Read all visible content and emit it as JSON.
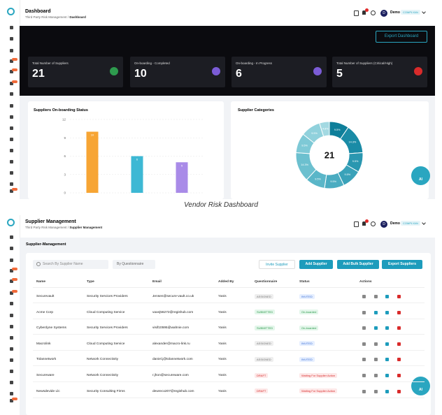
{
  "top": {
    "title": "Dashboard",
    "breadcrumb": [
      "Third Party Risk Management",
      "Dashboard"
    ],
    "separator": "/",
    "avatar": "D",
    "user": "Demo",
    "org": "COMPLYAN"
  },
  "export_button": "Export Dashboard",
  "stats": [
    {
      "label": "Total Number of Suppliers",
      "value": 21,
      "color": "#2e9b4e"
    },
    {
      "label": "On-boarding - Completed",
      "value": 10,
      "color": "#7b5cd6"
    },
    {
      "label": "On-boarding - In Progress",
      "value": 6,
      "color": "#7b5cd6"
    },
    {
      "label": "Total Number of Suppliers (Critical/High)",
      "value": 5,
      "color": "#d92b2b"
    }
  ],
  "ai_label": "AI",
  "caption": "Vendor Risk Dashboard",
  "chart_data": [
    {
      "type": "bar",
      "title": "Suppliers On-boarding Status",
      "categories": [
        null,
        null,
        null
      ],
      "values": [
        10,
        6,
        5
      ],
      "colors": [
        "#f7a534",
        "#3db8d4",
        "#a98be8"
      ],
      "ylim": [
        0,
        12
      ],
      "yticks": [
        0,
        3,
        6,
        9,
        12
      ],
      "grid": true
    },
    {
      "type": "pie",
      "title": "Supplier Categories",
      "total": 21,
      "values": [
        9.5,
        14.3,
        9.5,
        9.5,
        9.5,
        9.5,
        14.3,
        9.5,
        9.5,
        4.8
      ],
      "value_labels": [
        "9.5%",
        "14.3%",
        "9.5%",
        "9.5%",
        "9.5%",
        "9.5%",
        "14.3%",
        "9.5%",
        "9.5%",
        "4.8%"
      ],
      "colors": [
        "#0e7f9a",
        "#1a8ba6",
        "#2a97b0",
        "#3aa2b9",
        "#4aacc1",
        "#5ab6c8",
        "#6cc0cf",
        "#7ec9d6",
        "#90d1dc",
        "#a3d9e2"
      ]
    }
  ],
  "management": {
    "title": "Supplier Management",
    "breadcrumb": [
      "Third Party Risk Management",
      "Supplier Management"
    ],
    "section": "Supplier-Management",
    "search": "Search By Supplier Name",
    "filter": "By Questionnaire",
    "buttons": [
      "Invite Supplier",
      "Add Supplier",
      "Add Bulk Supplier",
      "Export Suppliers"
    ],
    "columns": [
      "Name",
      "Type",
      "Email",
      "Added By",
      "Questionnaire",
      "Status",
      "Actions"
    ],
    "rows": [
      [
        "Securevault",
        "Security Services Providers",
        "Jensen@secure-vault.co.uk",
        "Yanis",
        "ASSIGNED",
        "INVITED"
      ],
      [
        "Acme Corp",
        "Cloud Computing Service",
        "vaxej56272@regishub.com",
        "Yanis",
        "SUBMITTED",
        "On-boarded"
      ],
      [
        "Cyberdyne Systems",
        "Security Services Providers",
        "visif10595@wahnie.com",
        "Yanis",
        "SUBMITTED",
        "On-boarded"
      ],
      [
        "Macrolink",
        "Cloud Computing Service",
        "alexander@macro-link.ru",
        "Yanis",
        "ASSIGNED",
        "INVITED"
      ],
      [
        "Tolannetwork",
        "Network Connectivity",
        "daniel.j@tolannetwork.com",
        "Yanis",
        "ASSIGNED",
        "INVITED"
      ],
      [
        "Secureware",
        "Network Connectivity",
        "r.jhon@secureware.com",
        "Yanis",
        "DRAFT",
        "Waiting For Supplier Action"
      ],
      [
        "Newsdevide Llc",
        "Security Consulting Firms",
        "dewrecx207@regishub.com",
        "Yanis",
        "DRAFT",
        "Waiting For Supplier Action"
      ]
    ]
  }
}
